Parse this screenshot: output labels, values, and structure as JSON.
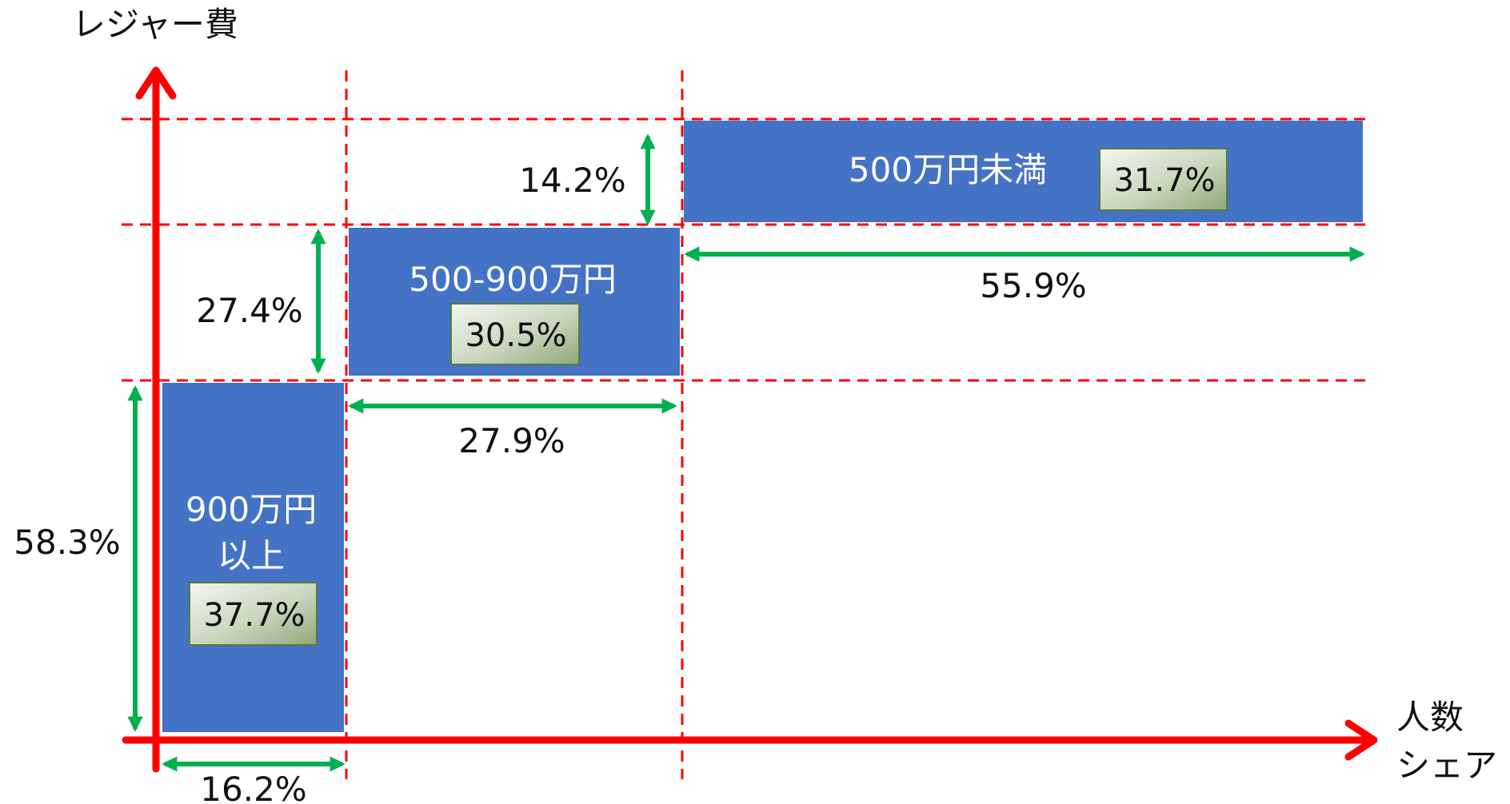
{
  "axes": {
    "y_label": "レジャー費",
    "x_label_line1": "人数",
    "x_label_line2": "シェア"
  },
  "segments": [
    {
      "name_line1": "900万円",
      "name_line2": "以上",
      "share_in_box": "37.7%",
      "width_label": "16.2%",
      "height_label": "58.3%"
    },
    {
      "name_line1": "500-900万円",
      "share_in_box": "30.5%",
      "width_label": "27.9%",
      "height_label": "27.4%"
    },
    {
      "name_line1": "500万円未満",
      "share_in_box": "31.7%",
      "width_label": "55.9%",
      "height_label": "14.2%"
    }
  ],
  "colors": {
    "axis": "#ff0000",
    "guide": "#ff0000",
    "bar": "#4472c4",
    "measure": "#00b050",
    "share_box_light": "#eef2ea",
    "share_box_dark": "#92ab80"
  }
}
